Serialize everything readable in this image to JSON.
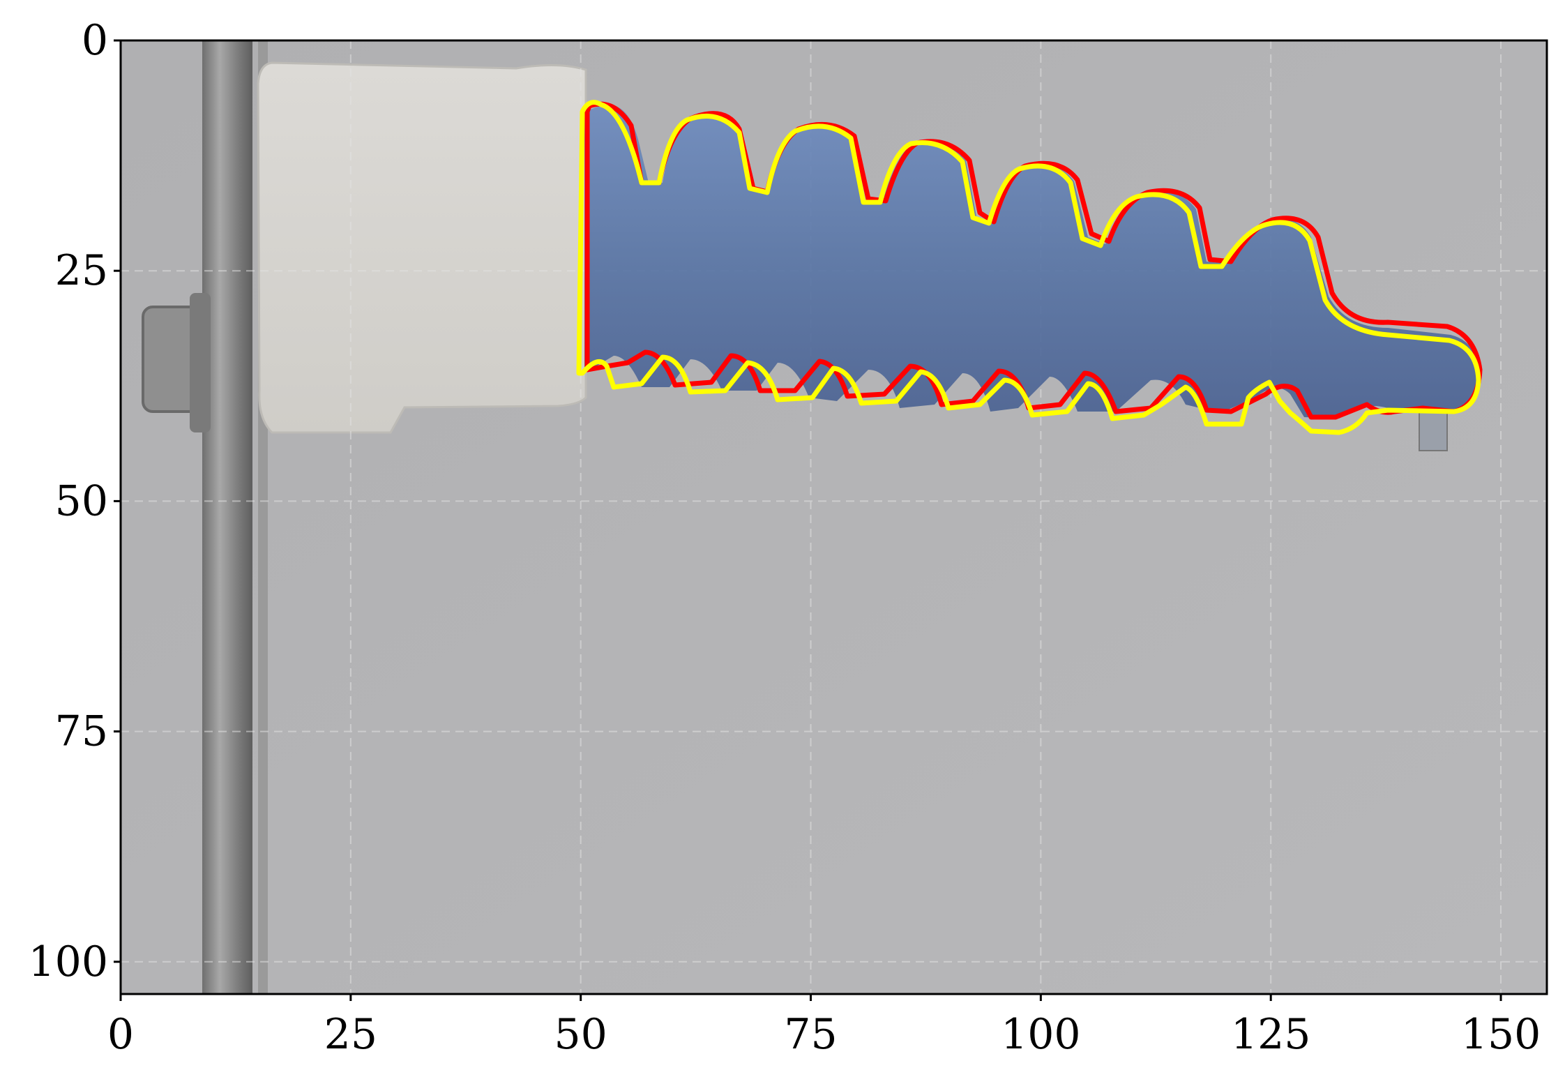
{
  "figure": {
    "image_description_colors": {
      "background": "#b4b4b6",
      "stand_rod": "#8a8a8a",
      "clamp": "#d9d7d2",
      "actuator_fill": "#5b77a8",
      "contour_red": "#ff0000",
      "contour_yellow": "#ffff00",
      "grid": "#e0e0e0"
    },
    "x_axis": {
      "ticks": [
        0,
        25,
        50,
        75,
        100,
        125,
        150
      ],
      "tick_labels": [
        "0",
        "25",
        "50",
        "75",
        "100",
        "125",
        "150"
      ],
      "range": [
        0,
        155
      ]
    },
    "y_axis": {
      "ticks": [
        0,
        25,
        50,
        75,
        100
      ],
      "tick_labels": [
        "0",
        "25",
        "50",
        "75",
        "100"
      ],
      "range": [
        103.5,
        0
      ],
      "inverted": true
    },
    "grid": true
  }
}
